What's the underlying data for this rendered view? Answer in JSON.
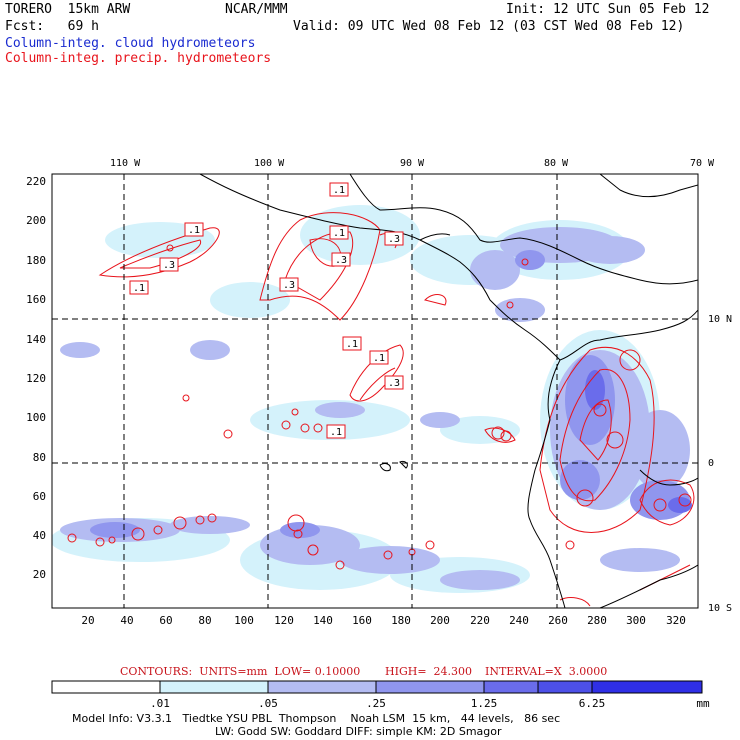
{
  "header": {
    "model": "TORERO  15km ARW",
    "org": "NCAR/MMM",
    "init": "Init: 12 UTC Sun 05 Feb 12",
    "fcst": "Fcst:   69 h",
    "valid": "Valid: 09 UTC Wed 08 Feb 12 (03 CST Wed 08 Feb 12)",
    "field1": "Column-integ. cloud hydrometeors",
    "field2": "Column-integ. precip. hydrometeors"
  },
  "colors": {
    "cloud_field": "#1a2bd0",
    "precip_field": "#e8141c"
  },
  "map": {
    "lon_labels": [
      "110 W",
      "100 W",
      "90 W",
      "80 W",
      "70 W"
    ],
    "lat_labels": [
      "10 N",
      "0",
      "10 S"
    ],
    "y_ticks": [
      "220",
      "200",
      "180",
      "160",
      "140",
      "120",
      "100",
      "80",
      "60",
      "40",
      "20"
    ],
    "x_ticks": [
      "20",
      "40",
      "60",
      "80",
      "100",
      "120",
      "140",
      "160",
      "180",
      "200",
      "220",
      "240",
      "260",
      "280",
      "300",
      "320"
    ],
    "contour_labels": [
      ".1",
      ".1",
      ".3",
      ".1",
      ".1",
      ".3",
      ".3",
      ".3",
      ".1",
      ".1",
      ".3",
      ".1"
    ]
  },
  "contour_info": {
    "units": "CONTOURS:  UNITS=mm  LOW= 0.10000",
    "high": "HIGH=  24.300",
    "interval": "INTERVAL=X  3.0000"
  },
  "colorbar": {
    "labels": [
      ".01",
      ".05",
      ".25",
      "1.25",
      "6.25"
    ],
    "unit": "mm",
    "colors": [
      "#ffffff",
      "#d4f2fb",
      "#b4bcf2",
      "#9096ee",
      "#6a6ceb",
      "#4d50e8",
      "#2f2fe6"
    ]
  },
  "footer": {
    "line1": "Model Info: V3.3.1   Tiedtke YSU PBL  Thompson    Noah LSM  15 km,   44 levels,   86 sec",
    "line2": "LW: Godd SW: Goddard DIFF: simple KM: 2D Smagor"
  }
}
